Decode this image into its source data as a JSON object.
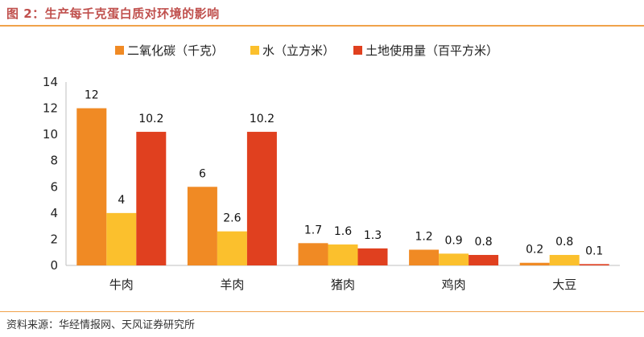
{
  "title": "图 2：生产每千克蛋白质对环境的影响",
  "source": "资料来源：华经情报网、天风证券研究所",
  "colors": {
    "accent": "#c0504d",
    "rule": "#f0a24a"
  },
  "chart_data": {
    "type": "bar",
    "categories": [
      "牛肉",
      "羊肉",
      "猪肉",
      "鸡肉",
      "大豆"
    ],
    "series": [
      {
        "name": "二氧化碳（千克）",
        "color": "#f08a24",
        "values": [
          12,
          6,
          1.7,
          1.2,
          0.2
        ]
      },
      {
        "name": "水（立方米）",
        "color": "#fbc02d",
        "values": [
          4,
          2.6,
          1.6,
          0.9,
          0.8
        ]
      },
      {
        "name": "土地使用量（百平方米）",
        "color": "#e0401f",
        "values": [
          10.2,
          10.2,
          1.3,
          0.8,
          0.1
        ]
      }
    ],
    "ylim": [
      0,
      14
    ],
    "yticks": [
      0,
      2,
      4,
      6,
      8,
      10,
      12,
      14
    ],
    "grid": false,
    "legend": "top"
  }
}
